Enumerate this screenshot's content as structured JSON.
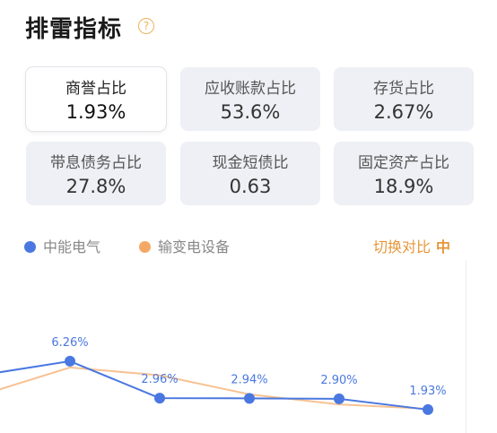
{
  "header": {
    "title": "排雷指标",
    "help": "?"
  },
  "metrics": [
    {
      "label": "商誉占比",
      "value": "1.93%"
    },
    {
      "label": "应收账款占比",
      "value": "53.6%"
    },
    {
      "label": "存货占比",
      "value": "2.67%"
    },
    {
      "label": "带息债务占比",
      "value": "27.8%"
    },
    {
      "label": "现金短债比",
      "value": "0.63"
    },
    {
      "label": "固定资产占比",
      "value": "18.9%"
    }
  ],
  "toggle": {
    "label": "切换对比",
    "icon": "中"
  },
  "chart_data": {
    "type": "line",
    "series": [
      {
        "name": "中能电气",
        "color": "#4a78e0",
        "values": [
          5.0,
          6.26,
          2.96,
          2.94,
          2.9,
          1.93
        ],
        "value_labels": [
          null,
          "6.26%",
          "2.96%",
          "2.94%",
          "2.90%",
          "1.93%"
        ]
      },
      {
        "name": "输变电设备",
        "color": "#f4a865",
        "values": [
          3.2,
          5.7,
          5.0,
          3.3,
          2.4,
          2.0
        ]
      }
    ],
    "ylim": [
      0,
      7
    ]
  }
}
